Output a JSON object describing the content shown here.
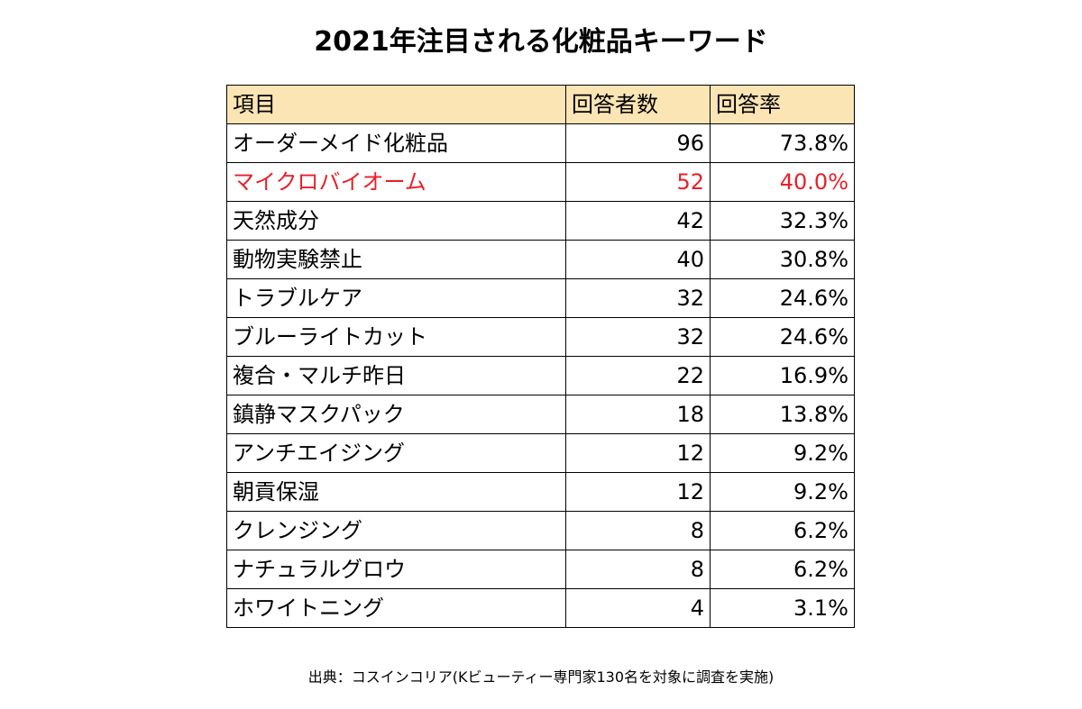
{
  "title": "2021年注目される化粧品キーワード",
  "colors": {
    "header_background": "#fbe5b4",
    "highlight_text": "#e8202a",
    "border": "#000000"
  },
  "chart_data": {
    "type": "table",
    "title": "2021年注目される化粧品キーワード",
    "columns": [
      "項目",
      "回答者数",
      "回答率"
    ],
    "rows": [
      {
        "item": "オーダーメイド化粧品",
        "count": "96",
        "rate": "73.8%",
        "highlight": false
      },
      {
        "item": "マイクロバイオーム",
        "count": "52",
        "rate": "40.0%",
        "highlight": true
      },
      {
        "item": "天然成分",
        "count": "42",
        "rate": "32.3%",
        "highlight": false
      },
      {
        "item": "動物実験禁止",
        "count": "40",
        "rate": "30.8%",
        "highlight": false
      },
      {
        "item": "トラブルケア",
        "count": "32",
        "rate": "24.6%",
        "highlight": false
      },
      {
        "item": "ブルーライトカット",
        "count": "32",
        "rate": "24.6%",
        "highlight": false
      },
      {
        "item": "複合・マルチ昨日",
        "count": "22",
        "rate": "16.9%",
        "highlight": false
      },
      {
        "item": "鎮静マスクパック",
        "count": "18",
        "rate": "13.8%",
        "highlight": false
      },
      {
        "item": "アンチエイジング",
        "count": "12",
        "rate": "9.2%",
        "highlight": false
      },
      {
        "item": "朝貢保湿",
        "count": "12",
        "rate": "9.2%",
        "highlight": false
      },
      {
        "item": "クレンジング",
        "count": "8",
        "rate": "6.2%",
        "highlight": false
      },
      {
        "item": "ナチュラルグロウ",
        "count": "8",
        "rate": "6.2%",
        "highlight": false
      },
      {
        "item": "ホワイトニング",
        "count": "4",
        "rate": "3.1%",
        "highlight": false
      }
    ]
  },
  "source": "出典：コスインコリア(Kビューティー専門家130名を対象に調査を実施)"
}
